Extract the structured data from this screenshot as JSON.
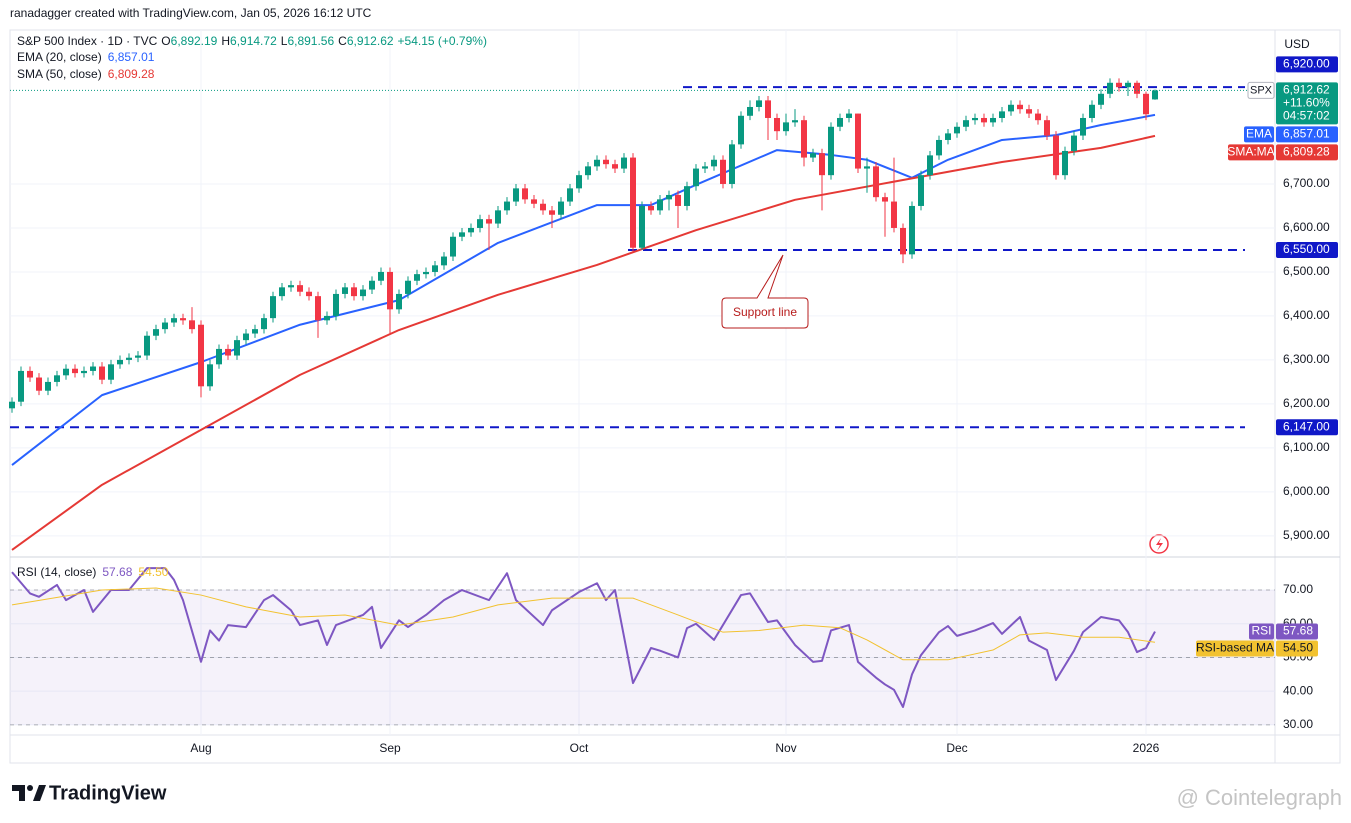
{
  "header": {
    "credit": "ranadagger created with TradingView.com, Jan 05, 2026 16:12 UTC"
  },
  "chart_data": [
    {
      "type": "candlestick",
      "legend": {
        "symbol": "S&P 500 Index · 1D · TVC",
        "ohlc": [
          {
            "key": "O",
            "value": "6,892.19"
          },
          {
            "key": "H",
            "value": "6,914.72"
          },
          {
            "key": "L",
            "value": "6,891.56"
          },
          {
            "key": "C",
            "value": "6,912.62"
          }
        ],
        "change": "+54.15 (+0.79%)"
      },
      "currency": "USD",
      "categories": [
        null,
        null,
        null,
        null,
        null,
        null,
        null,
        null,
        null,
        null,
        null,
        null,
        null,
        null,
        null,
        null,
        null,
        null,
        null,
        null,
        null,
        "Aug",
        null,
        null,
        null,
        null,
        null,
        null,
        null,
        null,
        null,
        null,
        null,
        null,
        null,
        null,
        null,
        null,
        null,
        null,
        null,
        null,
        "Sep",
        null,
        null,
        null,
        null,
        null,
        null,
        null,
        null,
        null,
        null,
        null,
        null,
        null,
        null,
        null,
        null,
        null,
        null,
        null,
        null,
        "Oct",
        null,
        null,
        null,
        null,
        null,
        null,
        null,
        null,
        null,
        null,
        null,
        null,
        null,
        null,
        null,
        null,
        null,
        null,
        null,
        null,
        null,
        null,
        "Nov",
        null,
        null,
        null,
        null,
        null,
        null,
        null,
        null,
        null,
        null,
        null,
        null,
        null,
        null,
        null,
        null,
        null,
        null,
        "Dec",
        null,
        null,
        null,
        null,
        null,
        null,
        null,
        null,
        null,
        null,
        null,
        null,
        null,
        null,
        null,
        null,
        null,
        null,
        null,
        null,
        "2026",
        null
      ],
      "open": [
        6190,
        6205,
        6275,
        6260,
        6230,
        6250,
        6265,
        6280,
        6270,
        6275,
        6285,
        6255,
        6290,
        6300,
        6305,
        6310,
        6355,
        6370,
        6385,
        6395,
        6390,
        6380,
        6240,
        6290,
        6325,
        6310,
        6345,
        6360,
        6370,
        6395,
        6445,
        6465,
        6470,
        6455,
        6445,
        6390,
        6400,
        6450,
        6465,
        6445,
        6460,
        6480,
        6500,
        6415,
        6450,
        6480,
        6495,
        6500,
        6515,
        6535,
        6580,
        6590,
        6600,
        6620,
        6610,
        6640,
        6660,
        6690,
        6665,
        6655,
        6640,
        6630,
        6660,
        6690,
        6720,
        6740,
        6755,
        6745,
        6735,
        6760,
        6555,
        6650,
        6640,
        6665,
        6675,
        6650,
        6695,
        6735,
        6740,
        6755,
        6700,
        6790,
        6855,
        6875,
        6890,
        6850,
        6820,
        6840,
        6845,
        6760,
        6770,
        6720,
        6830,
        6850,
        6860,
        6735,
        6740,
        6670,
        6660,
        6600,
        6540,
        6650,
        6720,
        6765,
        6800,
        6815,
        6830,
        6845,
        6850,
        6840,
        6850,
        6865,
        6880,
        6870,
        6860,
        6845,
        6810,
        6720,
        6775,
        6810,
        6850,
        6880,
        6905,
        6930,
        6920,
        6930,
        6905,
        6892.19
      ],
      "high": [
        6215,
        6285,
        6285,
        6270,
        6260,
        6275,
        6290,
        6290,
        6285,
        6295,
        6295,
        6300,
        6310,
        6315,
        6320,
        6365,
        6380,
        6395,
        6405,
        6405,
        6420,
        6390,
        6300,
        6335,
        6335,
        6355,
        6370,
        6380,
        6405,
        6455,
        6475,
        6480,
        6480,
        6465,
        6455,
        6410,
        6460,
        6475,
        6475,
        6470,
        6490,
        6510,
        6510,
        6460,
        6490,
        6505,
        6510,
        6525,
        6545,
        6590,
        6600,
        6610,
        6630,
        6630,
        6650,
        6670,
        6700,
        6700,
        6675,
        6665,
        6650,
        6670,
        6700,
        6730,
        6750,
        6765,
        6765,
        6755,
        6770,
        6770,
        6660,
        6660,
        6675,
        6685,
        6685,
        6705,
        6745,
        6750,
        6765,
        6765,
        6800,
        6865,
        6890,
        6900,
        6900,
        6860,
        6860,
        6870,
        6855,
        6780,
        6780,
        6840,
        6860,
        6870,
        6860,
        6760,
        6750,
        6680,
        6760,
        6610,
        6660,
        6730,
        6775,
        6810,
        6825,
        6840,
        6855,
        6860,
        6860,
        6860,
        6875,
        6890,
        6890,
        6880,
        6870,
        6855,
        6820,
        6785,
        6820,
        6860,
        6890,
        6915,
        6940,
        6940,
        6935,
        6935,
        6910,
        6914.72
      ],
      "low": [
        6180,
        6195,
        6250,
        6220,
        6220,
        6240,
        6255,
        6260,
        6260,
        6265,
        6245,
        6245,
        6280,
        6290,
        6295,
        6300,
        6345,
        6360,
        6375,
        6380,
        6360,
        6215,
        6230,
        6280,
        6300,
        6300,
        6335,
        6350,
        6360,
        6385,
        6435,
        6455,
        6445,
        6435,
        6350,
        6380,
        6390,
        6440,
        6435,
        6435,
        6450,
        6470,
        6360,
        6405,
        6440,
        6470,
        6485,
        6490,
        6505,
        6525,
        6570,
        6580,
        6590,
        6550,
        6600,
        6630,
        6650,
        6655,
        6645,
        6630,
        6600,
        6620,
        6650,
        6680,
        6710,
        6730,
        6735,
        6725,
        6725,
        6545,
        6550,
        6630,
        6630,
        6640,
        6600,
        6640,
        6685,
        6725,
        6730,
        6690,
        6690,
        6780,
        6845,
        6865,
        6800,
        6800,
        6810,
        6830,
        6740,
        6750,
        6640,
        6710,
        6820,
        6840,
        6725,
        6680,
        6660,
        6580,
        6590,
        6520,
        6530,
        6640,
        6710,
        6755,
        6790,
        6805,
        6820,
        6835,
        6830,
        6830,
        6840,
        6855,
        6860,
        6850,
        6835,
        6800,
        6710,
        6710,
        6765,
        6800,
        6840,
        6870,
        6895,
        6910,
        6900,
        6895,
        6845,
        6891.56
      ],
      "close": [
        6205,
        6275,
        6260,
        6230,
        6250,
        6265,
        6280,
        6270,
        6275,
        6285,
        6255,
        6290,
        6300,
        6305,
        6310,
        6355,
        6370,
        6385,
        6395,
        6390,
        6370,
        6240,
        6290,
        6325,
        6310,
        6345,
        6360,
        6370,
        6395,
        6445,
        6465,
        6470,
        6455,
        6445,
        6390,
        6400,
        6450,
        6465,
        6445,
        6460,
        6480,
        6500,
        6415,
        6450,
        6480,
        6495,
        6500,
        6515,
        6535,
        6580,
        6590,
        6600,
        6620,
        6610,
        6640,
        6660,
        6690,
        6665,
        6655,
        6640,
        6630,
        6660,
        6690,
        6720,
        6740,
        6755,
        6745,
        6735,
        6760,
        6555,
        6650,
        6640,
        6665,
        6675,
        6650,
        6695,
        6735,
        6740,
        6755,
        6700,
        6790,
        6855,
        6875,
        6890,
        6850,
        6820,
        6840,
        6845,
        6760,
        6770,
        6720,
        6830,
        6850,
        6860,
        6735,
        6740,
        6670,
        6660,
        6600,
        6540,
        6650,
        6720,
        6765,
        6800,
        6815,
        6830,
        6845,
        6850,
        6840,
        6850,
        6865,
        6880,
        6870,
        6860,
        6845,
        6810,
        6720,
        6775,
        6810,
        6850,
        6880,
        6905,
        6930,
        6920,
        6930,
        6905,
        6858.47,
        6912.62
      ],
      "up_color": "#089981",
      "down_color": "#f23645",
      "series": [
        {
          "name": "EMA (20, close)",
          "tag": "EMA",
          "color": "#2962ff",
          "value_label": "6,857.01",
          "x": [
            0,
            10,
            21,
            32,
            43,
            54,
            65,
            71,
            76,
            85,
            91,
            95,
            100,
            104,
            110,
            116,
            121,
            127
          ],
          "values": [
            6061,
            6220,
            6295,
            6380,
            6436,
            6566,
            6652,
            6652,
            6698,
            6777,
            6766,
            6755,
            6714,
            6755,
            6800,
            6811,
            6834,
            6857.01
          ]
        },
        {
          "name": "SMA (50, close)",
          "tag": "SMA:MA",
          "color": "#e53935",
          "value_label": "6,809.28",
          "x": [
            0,
            10,
            21,
            32,
            43,
            54,
            65,
            76,
            87,
            99,
            110,
            121,
            127
          ],
          "values": [
            5868,
            6016,
            6141,
            6266,
            6368,
            6448,
            6516,
            6595,
            6664,
            6709,
            6750,
            6782,
            6809.28
          ]
        }
      ],
      "price_tag": {
        "symbol": "SPX",
        "price": "6,912.62",
        "change": "+11.60%",
        "countdown": "04:57:02"
      },
      "levels": [
        {
          "value": 6920,
          "label": "6,920.00"
        },
        {
          "value": 6550,
          "label": "6,550.00"
        },
        {
          "value": 6147,
          "label": "6,147.00"
        }
      ],
      "level_color": "#1018c8",
      "annotation": "Support line",
      "ylim": [
        5852,
        7050
      ],
      "yticks": [
        {
          "value": 5900,
          "label": "5,900.00"
        },
        {
          "value": 6000,
          "label": "6,000.00"
        },
        {
          "value": 6100,
          "label": "6,100.00"
        },
        {
          "value": 6200,
          "label": "6,200.00"
        },
        {
          "value": 6300,
          "label": "6,300.00"
        },
        {
          "value": 6400,
          "label": "6,400.00"
        },
        {
          "value": 6500,
          "label": "6,500.00"
        },
        {
          "value": 6600,
          "label": "6,600.00"
        },
        {
          "value": 6700,
          "label": "6,700.00"
        }
      ],
      "grid": true
    },
    {
      "type": "line",
      "title": "RSI (14, close)",
      "series": [
        {
          "name": "RSI",
          "color": "#7e57c2",
          "value_label": "57.68",
          "x": [
            0,
            2,
            3,
            5,
            6,
            8,
            9,
            11,
            13,
            15,
            17,
            18,
            19,
            21,
            22,
            23,
            24,
            26,
            28,
            29,
            31,
            32,
            34,
            35,
            36,
            39,
            40,
            41,
            43,
            44,
            46,
            48,
            50,
            53,
            55,
            56,
            59,
            60,
            63,
            65,
            66,
            67,
            69,
            71,
            72,
            74,
            75,
            76,
            78,
            81,
            82,
            84,
            85,
            87,
            89,
            90,
            91,
            93,
            94,
            95,
            96,
            97,
            98,
            99,
            100,
            101,
            103,
            104,
            105,
            107,
            109,
            110,
            112,
            113,
            115,
            116,
            118,
            119,
            121,
            123,
            124,
            125,
            126,
            127
          ],
          "values": [
            75.3,
            69,
            68,
            71.5,
            67,
            70,
            63.5,
            70,
            70,
            76.5,
            76.5,
            73,
            67,
            48.7,
            58,
            55,
            59.6,
            59,
            67,
            68.5,
            64,
            59.6,
            61,
            53.7,
            59.6,
            62.6,
            65,
            52.8,
            61,
            59,
            62.6,
            67,
            70,
            67,
            75,
            67,
            59.6,
            64,
            69.4,
            72,
            67,
            70,
            42.4,
            52.8,
            52,
            50,
            58.7,
            60,
            55.2,
            68.5,
            69,
            60.5,
            61,
            53.7,
            48.7,
            49,
            58,
            59.6,
            48.7,
            46.3,
            44,
            42,
            40.4,
            35.3,
            45,
            50.7,
            57.5,
            59.3,
            56.4,
            58,
            60.2,
            57,
            62,
            55,
            52.2,
            43.3,
            52,
            57.5,
            62,
            61,
            57.5,
            51.6,
            52.8,
            57.68
          ]
        },
        {
          "name": "RSI-based MA",
          "color": "#f2c230",
          "value_label": "54.50",
          "x": [
            0,
            10,
            16,
            21,
            26,
            32,
            37,
            43,
            49,
            54,
            60,
            65,
            69,
            74,
            79,
            83,
            88,
            92,
            95,
            99,
            104,
            109,
            112,
            115,
            119,
            123,
            127
          ],
          "values": [
            65.6,
            70,
            70.6,
            68.5,
            65,
            62,
            62.6,
            59.6,
            62,
            65.6,
            67.6,
            67.6,
            67.6,
            62.6,
            57.5,
            58,
            59.6,
            58.8,
            55.2,
            49.3,
            49.3,
            52.2,
            56.7,
            57.3,
            56,
            56,
            54.5
          ]
        }
      ],
      "bands": {
        "upper": 70,
        "middle": 50,
        "lower": 30
      },
      "ylim": [
        27,
        78.9
      ],
      "yticks": [
        {
          "value": 30,
          "label": "30.00"
        },
        {
          "value": 40,
          "label": "40.00"
        },
        {
          "value": 50,
          "label": "50.00"
        },
        {
          "value": 60,
          "label": "60.00"
        },
        {
          "value": 70,
          "label": "70.00"
        }
      ],
      "grid": true
    }
  ],
  "footer": {
    "brand": "TradingView",
    "watermark": "@ Cointelegraph"
  }
}
